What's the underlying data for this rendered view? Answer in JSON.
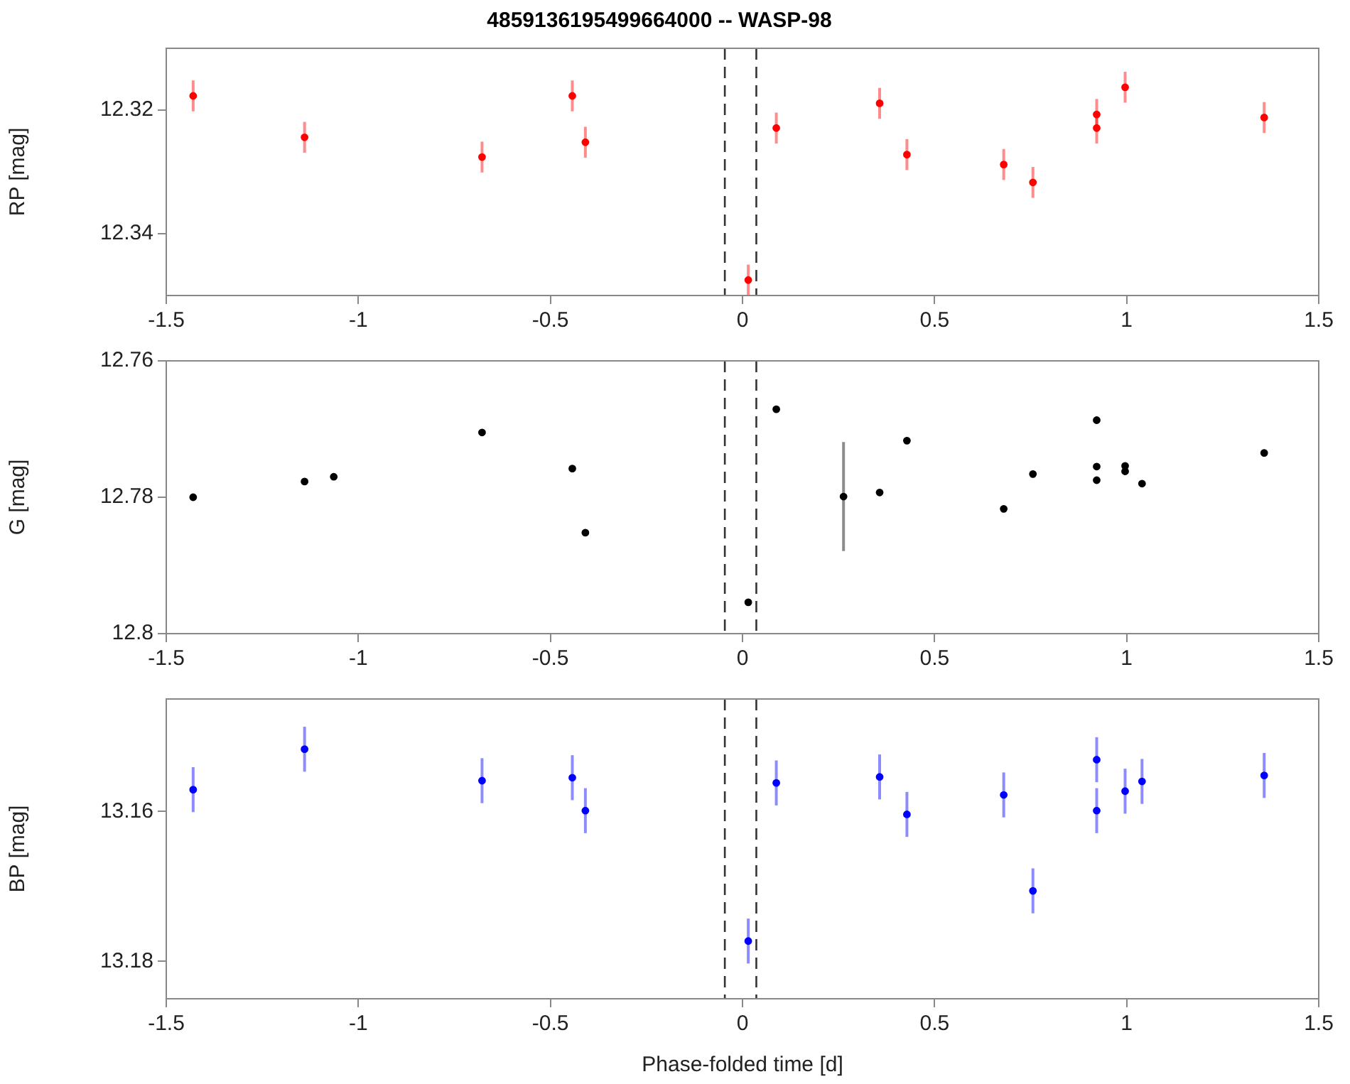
{
  "chart_data": [
    {
      "type": "scatter",
      "title": "4859136195499664000 -- WASP-98",
      "ylabel": "RP [mag]",
      "xlim": [
        -1.5,
        1.5
      ],
      "xticks": [
        -1.5,
        -1,
        -0.5,
        0,
        0.5,
        1,
        1.5
      ],
      "ylim": [
        12.35,
        12.31
      ],
      "yticks": [
        12.32,
        12.34
      ],
      "grid": false,
      "marker": "circle",
      "ref_lines": [
        {
          "axis": "x",
          "value": -0.046,
          "color": "#333333",
          "line_style": "dashed"
        },
        {
          "axis": "x",
          "value": 0.036,
          "color": "#333333",
          "line_style": "dashed"
        }
      ],
      "series": [
        {
          "color": "#ff0000",
          "x": [
            -1.43,
            -1.14,
            -0.678,
            -0.443,
            -0.409,
            0.015,
            0.088,
            0.357,
            0.428,
            0.68,
            0.756,
            0.922,
            0.922,
            0.996,
            1.358
          ],
          "values": [
            12.3177,
            12.3244,
            12.3276,
            12.3177,
            12.3252,
            12.3475,
            12.3229,
            12.3189,
            12.3272,
            12.3288,
            12.3317,
            12.3207,
            12.3229,
            12.3163,
            12.3212
          ],
          "errors": [
            0.0025,
            0.0025,
            0.0025,
            0.0025,
            0.0025,
            0.0025,
            0.0025,
            0.0025,
            0.0025,
            0.0025,
            0.0025,
            0.0025,
            0.0025,
            0.0025,
            0.0025
          ]
        }
      ]
    },
    {
      "type": "scatter",
      "ylabel": "G [mag]",
      "xlim": [
        -1.5,
        1.5
      ],
      "xticks": [
        -1.5,
        -1,
        -0.5,
        0,
        0.5,
        1,
        1.5
      ],
      "ylim": [
        12.8,
        12.76
      ],
      "yticks": [
        12.76,
        12.78,
        12.8
      ],
      "grid": false,
      "marker": "circle",
      "ref_lines": [
        {
          "axis": "x",
          "value": -0.046,
          "color": "#333333",
          "line_style": "dashed"
        },
        {
          "axis": "x",
          "value": 0.036,
          "color": "#333333",
          "line_style": "dashed"
        }
      ],
      "series": [
        {
          "color": "#000000",
          "x": [
            -1.43,
            -1.14,
            -1.064,
            -0.678,
            -0.443,
            -0.409,
            0.015,
            0.088,
            0.263,
            0.357,
            0.428,
            0.68,
            0.756,
            0.922,
            0.922,
            0.922,
            0.996,
            0.996,
            1.04,
            1.358
          ],
          "values": [
            12.78,
            12.7777,
            12.777,
            12.7705,
            12.7758,
            12.7852,
            12.7954,
            12.7671,
            12.7799,
            12.7793,
            12.7717,
            12.7817,
            12.7766,
            12.7687,
            12.7755,
            12.7775,
            12.7754,
            12.7762,
            12.778,
            12.7735
          ],
          "errors": [
            0.0005,
            0.0005,
            0.0005,
            0.0005,
            0.0005,
            0.0005,
            0.0005,
            0.0005,
            0.008,
            0.0005,
            0.0005,
            0.0005,
            0.0005,
            0.0005,
            0.0005,
            0.0005,
            0.0005,
            0.0005,
            0.0005,
            0.0005
          ]
        }
      ]
    },
    {
      "type": "scatter",
      "xlabel": "Phase-folded time [d]",
      "ylabel": "BP [mag]",
      "xlim": [
        -1.5,
        1.5
      ],
      "xticks": [
        -1.5,
        -1,
        -0.5,
        0,
        0.5,
        1,
        1.5
      ],
      "ylim": [
        13.185,
        13.145
      ],
      "yticks": [
        13.16,
        13.18
      ],
      "grid": false,
      "marker": "circle",
      "ref_lines": [
        {
          "axis": "x",
          "value": -0.046,
          "color": "#333333",
          "line_style": "dashed"
        },
        {
          "axis": "x",
          "value": 0.036,
          "color": "#333333",
          "line_style": "dashed"
        }
      ],
      "series": [
        {
          "color": "#0000ff",
          "x": [
            -1.43,
            -1.14,
            -0.678,
            -0.443,
            -0.409,
            0.015,
            0.088,
            0.357,
            0.428,
            0.68,
            0.756,
            0.922,
            0.922,
            0.996,
            1.04,
            1.358
          ],
          "values": [
            13.1571,
            13.1517,
            13.1559,
            13.1555,
            13.1599,
            13.1773,
            13.1562,
            13.1554,
            13.1604,
            13.1578,
            13.1706,
            13.1531,
            13.1599,
            13.1573,
            13.156,
            13.1552
          ],
          "errors": [
            0.003,
            0.003,
            0.003,
            0.003,
            0.003,
            0.003,
            0.003,
            0.003,
            0.003,
            0.003,
            0.003,
            0.003,
            0.003,
            0.003,
            0.003,
            0.003
          ]
        }
      ]
    }
  ]
}
